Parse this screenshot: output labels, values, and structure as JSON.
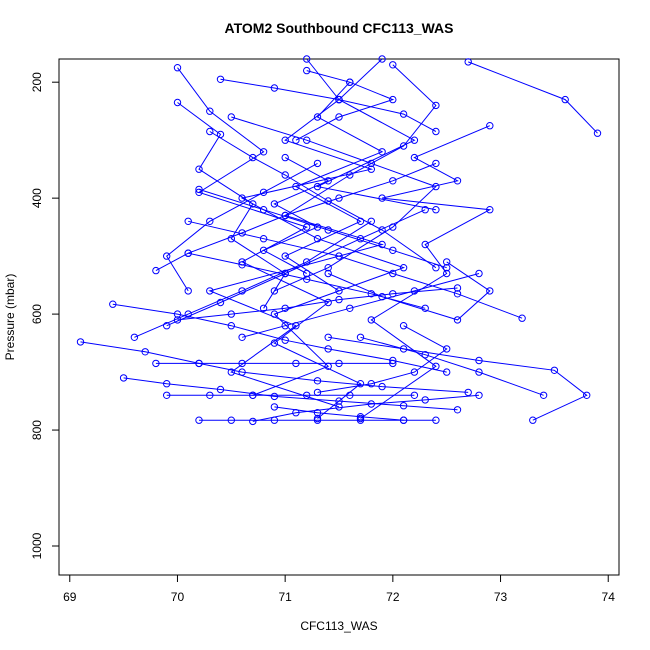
{
  "chart_data": {
    "type": "line",
    "title": "ATOM2 Southbound CFC113_WAS",
    "xlabel": "CFC113_WAS",
    "ylabel": "Pressure (mbar)",
    "xlim": [
      68.9,
      74.1
    ],
    "ylim": [
      1050,
      160
    ],
    "y_reversed": true,
    "x_ticks": [
      69,
      70,
      71,
      72,
      73,
      74
    ],
    "y_ticks": [
      200,
      400,
      600,
      800,
      1000
    ],
    "grid": false,
    "legend": "none",
    "line_color": "#0000ff",
    "marker": "open-circle",
    "series": [
      {
        "x": [
          71.2,
          71.5,
          71.0,
          71.8,
          70.6,
          71.3,
          72.1,
          70.9,
          71.4,
          70.7
        ],
        "y": [
          160,
          230,
          300,
          350,
          400,
          470,
          520,
          600,
          690,
          740
        ]
      },
      {
        "x": [
          72.7,
          73.6,
          73.9
        ],
        "y": [
          165,
          230,
          288
        ]
      },
      {
        "x": [
          72.0,
          72.4,
          72.1,
          71.6,
          71.0,
          71.9,
          70.3,
          71.1,
          70.5,
          71.5
        ],
        "y": [
          170,
          240,
          310,
          360,
          430,
          480,
          560,
          620,
          700,
          760
        ]
      },
      {
        "x": [
          70.0,
          70.3,
          70.8,
          70.2,
          71.2,
          70.6,
          71.4,
          70.9,
          71.7,
          71.3
        ],
        "y": [
          175,
          250,
          320,
          390,
          450,
          510,
          580,
          650,
          720,
          780
        ]
      },
      {
        "x": [
          72.9,
          72.2,
          72.6,
          71.9,
          72.9,
          72.3,
          72.5,
          71.8,
          72.4,
          71.7
        ],
        "y": [
          275,
          330,
          370,
          400,
          420,
          480,
          530,
          610,
          690,
          780
        ]
      },
      {
        "x": [
          69.1,
          69.7,
          70.2,
          70.6,
          71.3,
          71.9,
          72.7
        ],
        "y": [
          648,
          665,
          685,
          700,
          715,
          725,
          735
        ]
      },
      {
        "x": [
          69.4,
          70.0,
          70.5,
          71.0,
          71.4,
          72.0,
          72.5
        ],
        "y": [
          583,
          600,
          620,
          645,
          660,
          680,
          700
        ]
      },
      {
        "x": [
          69.5,
          69.9,
          70.4,
          70.9,
          71.5,
          72.1,
          72.6
        ],
        "y": [
          710,
          720,
          730,
          742,
          750,
          758,
          765
        ]
      },
      {
        "x": [
          70.2,
          70.5,
          70.9,
          71.3,
          71.7,
          72.1,
          72.4
        ],
        "y": [
          783,
          783,
          783,
          783,
          783,
          783,
          783
        ]
      },
      {
        "x": [
          73.3,
          73.8,
          73.5,
          72.8,
          72.1,
          71.4
        ],
        "y": [
          783,
          740,
          697,
          680,
          660,
          640
        ]
      },
      {
        "x": [
          73.2,
          72.6,
          72.0,
          71.5,
          70.8,
          70.1
        ],
        "y": [
          607,
          565,
          530,
          500,
          470,
          440
        ]
      },
      {
        "x": [
          69.8,
          70.1,
          70.6,
          71.0,
          71.5,
          72.0,
          72.4
        ],
        "y": [
          525,
          495,
          460,
          430,
          400,
          370,
          340
        ]
      },
      {
        "x": [
          70.0,
          70.4,
          70.2,
          70.7,
          70.5,
          71.0,
          70.8
        ],
        "y": [
          235,
          290,
          350,
          410,
          470,
          530,
          590
        ]
      },
      {
        "x": [
          70.5,
          71.2,
          71.8,
          72.4,
          72.0,
          71.4,
          70.9
        ],
        "y": [
          260,
          300,
          340,
          380,
          450,
          520,
          560
        ]
      },
      {
        "x": [
          71.6,
          71.3,
          71.9,
          71.1,
          71.7,
          71.0,
          71.5
        ],
        "y": [
          200,
          260,
          320,
          380,
          440,
          500,
          560
        ]
      },
      {
        "x": [
          70.2,
          70.8,
          71.4,
          72.0,
          72.5
        ],
        "y": [
          385,
          420,
          455,
          490,
          520
        ]
      },
      {
        "x": [
          69.9,
          70.3,
          70.7,
          71.2,
          71.6,
          72.2
        ],
        "y": [
          740,
          740,
          740,
          740,
          740,
          740
        ]
      },
      {
        "x": [
          69.8,
          70.2,
          70.6,
          71.1,
          71.5,
          72.0
        ],
        "y": [
          685,
          685,
          685,
          685,
          685,
          685
        ]
      },
      {
        "x": [
          71.2,
          71.6,
          72.0,
          71.5,
          71.1
        ],
        "y": [
          180,
          200,
          230,
          260,
          300
        ]
      },
      {
        "x": [
          70.3,
          70.7,
          71.0,
          71.4,
          71.9,
          72.4
        ],
        "y": [
          285,
          330,
          360,
          405,
          455,
          520
        ]
      },
      {
        "x": [
          71.8,
          71.2,
          70.6,
          70.1,
          69.6
        ],
        "y": [
          440,
          510,
          560,
          600,
          640
        ]
      },
      {
        "x": [
          72.3,
          71.7,
          71.0,
          70.4,
          69.9
        ],
        "y": [
          420,
          470,
          530,
          580,
          620
        ]
      },
      {
        "x": [
          71.9,
          71.5,
          72.2,
          71.3,
          72.4
        ],
        "y": [
          160,
          230,
          300,
          380,
          420
        ]
      },
      {
        "x": [
          70.6,
          71.0,
          71.6,
          72.2,
          72.8
        ],
        "y": [
          640,
          620,
          590,
          560,
          530
        ]
      },
      {
        "x": [
          71.4,
          71.9,
          72.6,
          72.9,
          72.5
        ],
        "y": [
          530,
          570,
          610,
          560,
          510
        ]
      },
      {
        "x": [
          70.7,
          71.1,
          71.8,
          72.3,
          72.8
        ],
        "y": [
          785,
          770,
          755,
          748,
          740
        ]
      },
      {
        "x": [
          71.7,
          72.3,
          72.8,
          73.4
        ],
        "y": [
          640,
          670,
          700,
          740
        ]
      },
      {
        "x": [
          70.0,
          70.5,
          71.0,
          71.5,
          72.0,
          72.6
        ],
        "y": [
          610,
          600,
          590,
          575,
          565,
          555
        ]
      },
      {
        "x": [
          70.1,
          70.6,
          71.2,
          71.8,
          72.3
        ],
        "y": [
          495,
          515,
          540,
          565,
          590
        ]
      },
      {
        "x": [
          71.0,
          71.4,
          70.9,
          71.3,
          70.8,
          71.2
        ],
        "y": [
          330,
          370,
          410,
          450,
          490,
          530
        ]
      },
      {
        "x": [
          70.4,
          70.9,
          71.5,
          72.1,
          72.4
        ],
        "y": [
          195,
          210,
          230,
          255,
          285
        ]
      },
      {
        "x": [
          71.3,
          70.8,
          70.3,
          69.9,
          70.1
        ],
        "y": [
          340,
          390,
          440,
          500,
          560
        ]
      },
      {
        "x": [
          72.1,
          72.5,
          72.2,
          71.8,
          71.3
        ],
        "y": [
          620,
          660,
          700,
          720,
          735
        ]
      },
      {
        "x": [
          70.9,
          71.3,
          71.7,
          72.1
        ],
        "y": [
          760,
          770,
          777,
          783
        ]
      }
    ]
  }
}
